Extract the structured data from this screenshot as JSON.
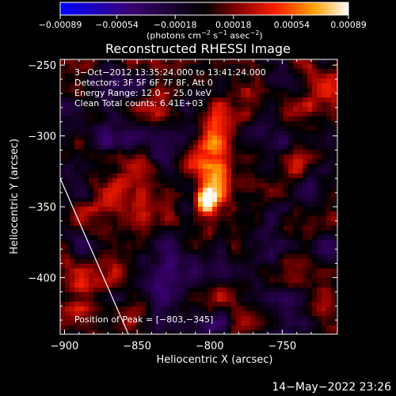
{
  "chart_data": {
    "type": "heatmap",
    "title": "Reconstructed RHESSI Image",
    "xlabel": "Heliocentric X (arcsec)",
    "ylabel": "Heliocentric Y (arcsec)",
    "xlim": [
      -903,
      -712
    ],
    "ylim": [
      -440,
      -246
    ],
    "xticks": [
      -900,
      -850,
      -800,
      -750
    ],
    "xtick_labels": [
      "−900",
      "−850",
      "−800",
      "−750"
    ],
    "yticks": [
      -250,
      -300,
      -350,
      -400
    ],
    "ytick_labels": [
      "−250",
      "−300",
      "−350",
      "−400"
    ],
    "colorbar": {
      "min": -0.00089,
      "max": 0.00089,
      "ticks": [
        -0.00089,
        -0.00054,
        -0.00018,
        0.00018,
        0.00054,
        0.00089
      ],
      "tick_labels": [
        "−0.00089",
        "−0.00054",
        "−0.00018",
        "0.00018",
        "0.00054",
        "0.00089"
      ],
      "units_prefix": "(photons cm",
      "units_exp1": "−2",
      "units_mid": " s",
      "units_exp2": "−1",
      "units_mid2": " asec",
      "units_exp3": "−2",
      "units_suffix": ")"
    },
    "annotations": {
      "time": "3−Oct−2012 13:35:24.000 to 13:41:24.000",
      "detectors": "Detectors: 3F 5F 6F 7F 8F, Att 0",
      "energy": "Energy Range: 12.0 − 25.0 keV",
      "clean": "Clean     Total counts: 6.41E+03",
      "peak": "Position of Peak = [−803,−345]"
    },
    "peak": {
      "x": -803,
      "y": -345,
      "value": 0.00089
    },
    "limb_line": [
      [
        -903,
        -330
      ],
      [
        -856,
        -440
      ]
    ]
  },
  "footer": "14−May−2022 23:26"
}
